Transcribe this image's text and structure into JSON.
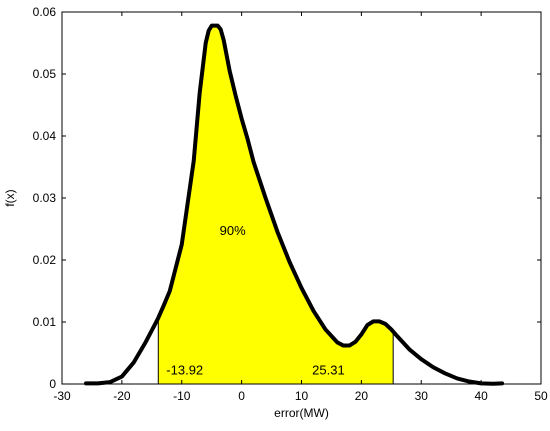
{
  "chart_data": {
    "type": "area",
    "title": "",
    "xlabel": "error(MW)",
    "ylabel": "f(x)",
    "xlim": [
      -30,
      50
    ],
    "ylim": [
      0,
      0.06
    ],
    "xticks": [
      -30,
      -20,
      -10,
      0,
      10,
      20,
      30,
      40,
      50
    ],
    "yticks": [
      0,
      0.01,
      0.02,
      0.03,
      0.04,
      0.05,
      0.06
    ],
    "xtick_labels": [
      "-30",
      "-20",
      "-10",
      "0",
      "10",
      "20",
      "30",
      "40",
      "50"
    ],
    "ytick_labels": [
      "0",
      "0.01",
      "0.02",
      "0.03",
      "0.04",
      "0.05",
      "0.06"
    ],
    "grid": false,
    "curve_color": "#000000",
    "fill_color": "#ffff00",
    "series": [
      {
        "x": [
          -26,
          -24,
          -22,
          -20,
          -18,
          -16,
          -14,
          -13,
          -12,
          -10,
          -8,
          -7,
          -6,
          -5.5,
          -5,
          -4,
          -3.5,
          -3,
          -2,
          -1,
          0,
          1,
          2,
          4,
          6,
          8,
          10,
          12,
          14,
          16,
          17,
          18,
          19,
          20,
          21,
          22,
          23,
          24,
          25,
          26,
          28,
          30,
          32,
          34,
          36,
          38,
          40,
          42,
          43.5
        ],
        "y": [
          0.0001,
          0.0001,
          0.0003,
          0.0012,
          0.0035,
          0.0068,
          0.0105,
          0.0127,
          0.015,
          0.0225,
          0.036,
          0.047,
          0.055,
          0.057,
          0.0578,
          0.0578,
          0.0572,
          0.0555,
          0.0505,
          0.0465,
          0.0428,
          0.0395,
          0.0358,
          0.03,
          0.0245,
          0.0197,
          0.0155,
          0.0118,
          0.0088,
          0.0067,
          0.0062,
          0.0062,
          0.0068,
          0.008,
          0.0095,
          0.0101,
          0.0101,
          0.0097,
          0.0088,
          0.0077,
          0.0056,
          0.004,
          0.0027,
          0.0017,
          0.0009,
          0.0004,
          0.0001,
          5e-05,
          0.0001
        ]
      }
    ],
    "shaded_interval": [
      -13.92,
      25.31
    ],
    "annotations": {
      "coverage": {
        "text": "90%",
        "x": -1.5,
        "y": 0.024
      },
      "lower": {
        "text": "-13.92",
        "x": -9.5,
        "y": 0.0015
      },
      "upper": {
        "text": "25.31",
        "x": 14.5,
        "y": 0.0015
      }
    }
  }
}
